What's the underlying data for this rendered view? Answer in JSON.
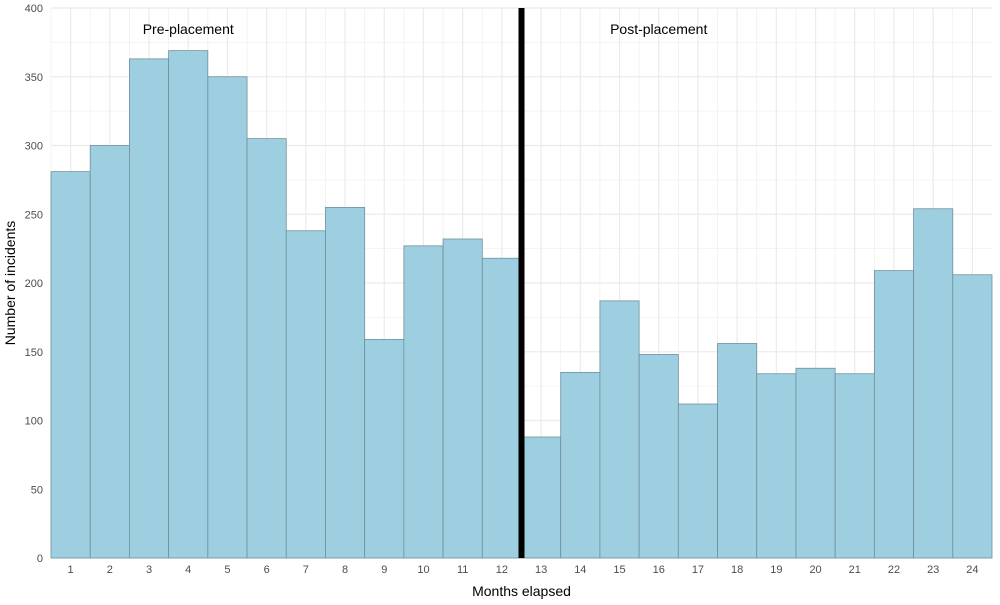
{
  "chart_data": {
    "type": "bar",
    "xlabel": "Months elapsed",
    "ylabel": "Number of incidents",
    "ylim": [
      0,
      400
    ],
    "y_ticks": [
      0,
      50,
      100,
      150,
      200,
      250,
      300,
      350,
      400
    ],
    "grid": true,
    "categories": [
      "1",
      "2",
      "3",
      "4",
      "5",
      "6",
      "7",
      "8",
      "9",
      "10",
      "11",
      "12",
      "13",
      "14",
      "15",
      "16",
      "17",
      "18",
      "19",
      "20",
      "21",
      "22",
      "23",
      "24"
    ],
    "values": [
      281,
      300,
      363,
      369,
      350,
      305,
      238,
      255,
      159,
      227,
      232,
      218,
      88,
      135,
      187,
      148,
      112,
      156,
      134,
      138,
      134,
      209,
      254,
      206
    ],
    "divider_after_month": 12,
    "annotations": {
      "pre": "Pre-placement",
      "post": "Post-placement"
    },
    "colors": {
      "bar_fill": "#9ecfe0",
      "bar_stroke": "#6f8f9c",
      "divider": "#000000",
      "grid": "#ebebeb"
    }
  }
}
